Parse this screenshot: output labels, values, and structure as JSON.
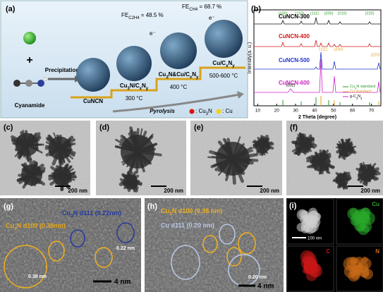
{
  "panel_a": {
    "label": "(a)",
    "plus": "+",
    "precipitation": "Precipitation",
    "cyanamide": "Cyanamide",
    "cuncn": "CuNCN",
    "stage1": {
      "name": [
        "Cu",
        "3",
        "N/C",
        "x",
        "N",
        "y"
      ],
      "temp": "300 °C"
    },
    "stage2": {
      "name": [
        "Cu",
        "3",
        "N&Cu/C",
        "x",
        "N",
        "y"
      ],
      "temp": "400 °C"
    },
    "stage3": {
      "name": [
        "Cu/C",
        "x",
        "N",
        "y"
      ],
      "temp": "500-600 °C"
    },
    "pyrolysis": "Pyrolysis",
    "fe_c2h4": [
      "FE",
      "C2H4",
      " = 48.5 %"
    ],
    "fe_ch4": [
      "FE",
      "CH4",
      " = 68.7 %"
    ],
    "electron": "e⁻",
    "legend_cu3n": [
      ": Cu",
      "3",
      "N"
    ],
    "legend_cu": ": Cu"
  },
  "panel_b": {
    "label": "(b)",
    "samples": [
      "CuNCN-300",
      "CuNCN-400",
      "CuNCN-500",
      "CuNCN-600"
    ],
    "cu3n_planes": [
      "(100)",
      "(110)",
      "(111)",
      "(200)",
      "(210)",
      "(220)"
    ],
    "cu_planes": [
      "(111)",
      "(200)",
      "(220)"
    ],
    "c3n4_plane": "(002)",
    "legend": [
      [
        "Cu",
        "3",
        "N standard"
      ],
      [
        "Cu standard"
      ],
      [
        "g-C",
        "3",
        "N",
        "4"
      ]
    ],
    "ylabel": "Intensity(a. u.)",
    "xlabel": "2 Theta (degree)",
    "xlim": [
      8,
      75
    ],
    "xticks": [
      10,
      20,
      30,
      40,
      50,
      60,
      70
    ]
  },
  "panel_c": {
    "label": "(c)",
    "scale": "200 nm"
  },
  "panel_d": {
    "label": "(d)",
    "scale": "200 nm"
  },
  "panel_e": {
    "label": "(e)",
    "scale": "200 nm"
  },
  "panel_f": {
    "label": "(f)",
    "scale": "200 nm"
  },
  "panel_g": {
    "label": "(g)",
    "note1": [
      "Cu",
      "3",
      "N d111 (0.22nm)"
    ],
    "note2": [
      "Cu",
      "3",
      "N d100 (0.38nm)"
    ],
    "spacing1": "0.22 nm",
    "spacing2": "0.38 nm",
    "scale": "4 nm"
  },
  "panel_h": {
    "label": "(h)",
    "note1": [
      "Cu",
      "3",
      "N d100 (0.38 nm)"
    ],
    "note2": "Cu d111 (0.20 nm)",
    "spacing": "0.20 nm",
    "scale": "4 nm"
  },
  "panel_i": {
    "label": "(i)",
    "scale": "100 nm",
    "maps": [
      "Cu",
      "C",
      "N"
    ]
  }
}
